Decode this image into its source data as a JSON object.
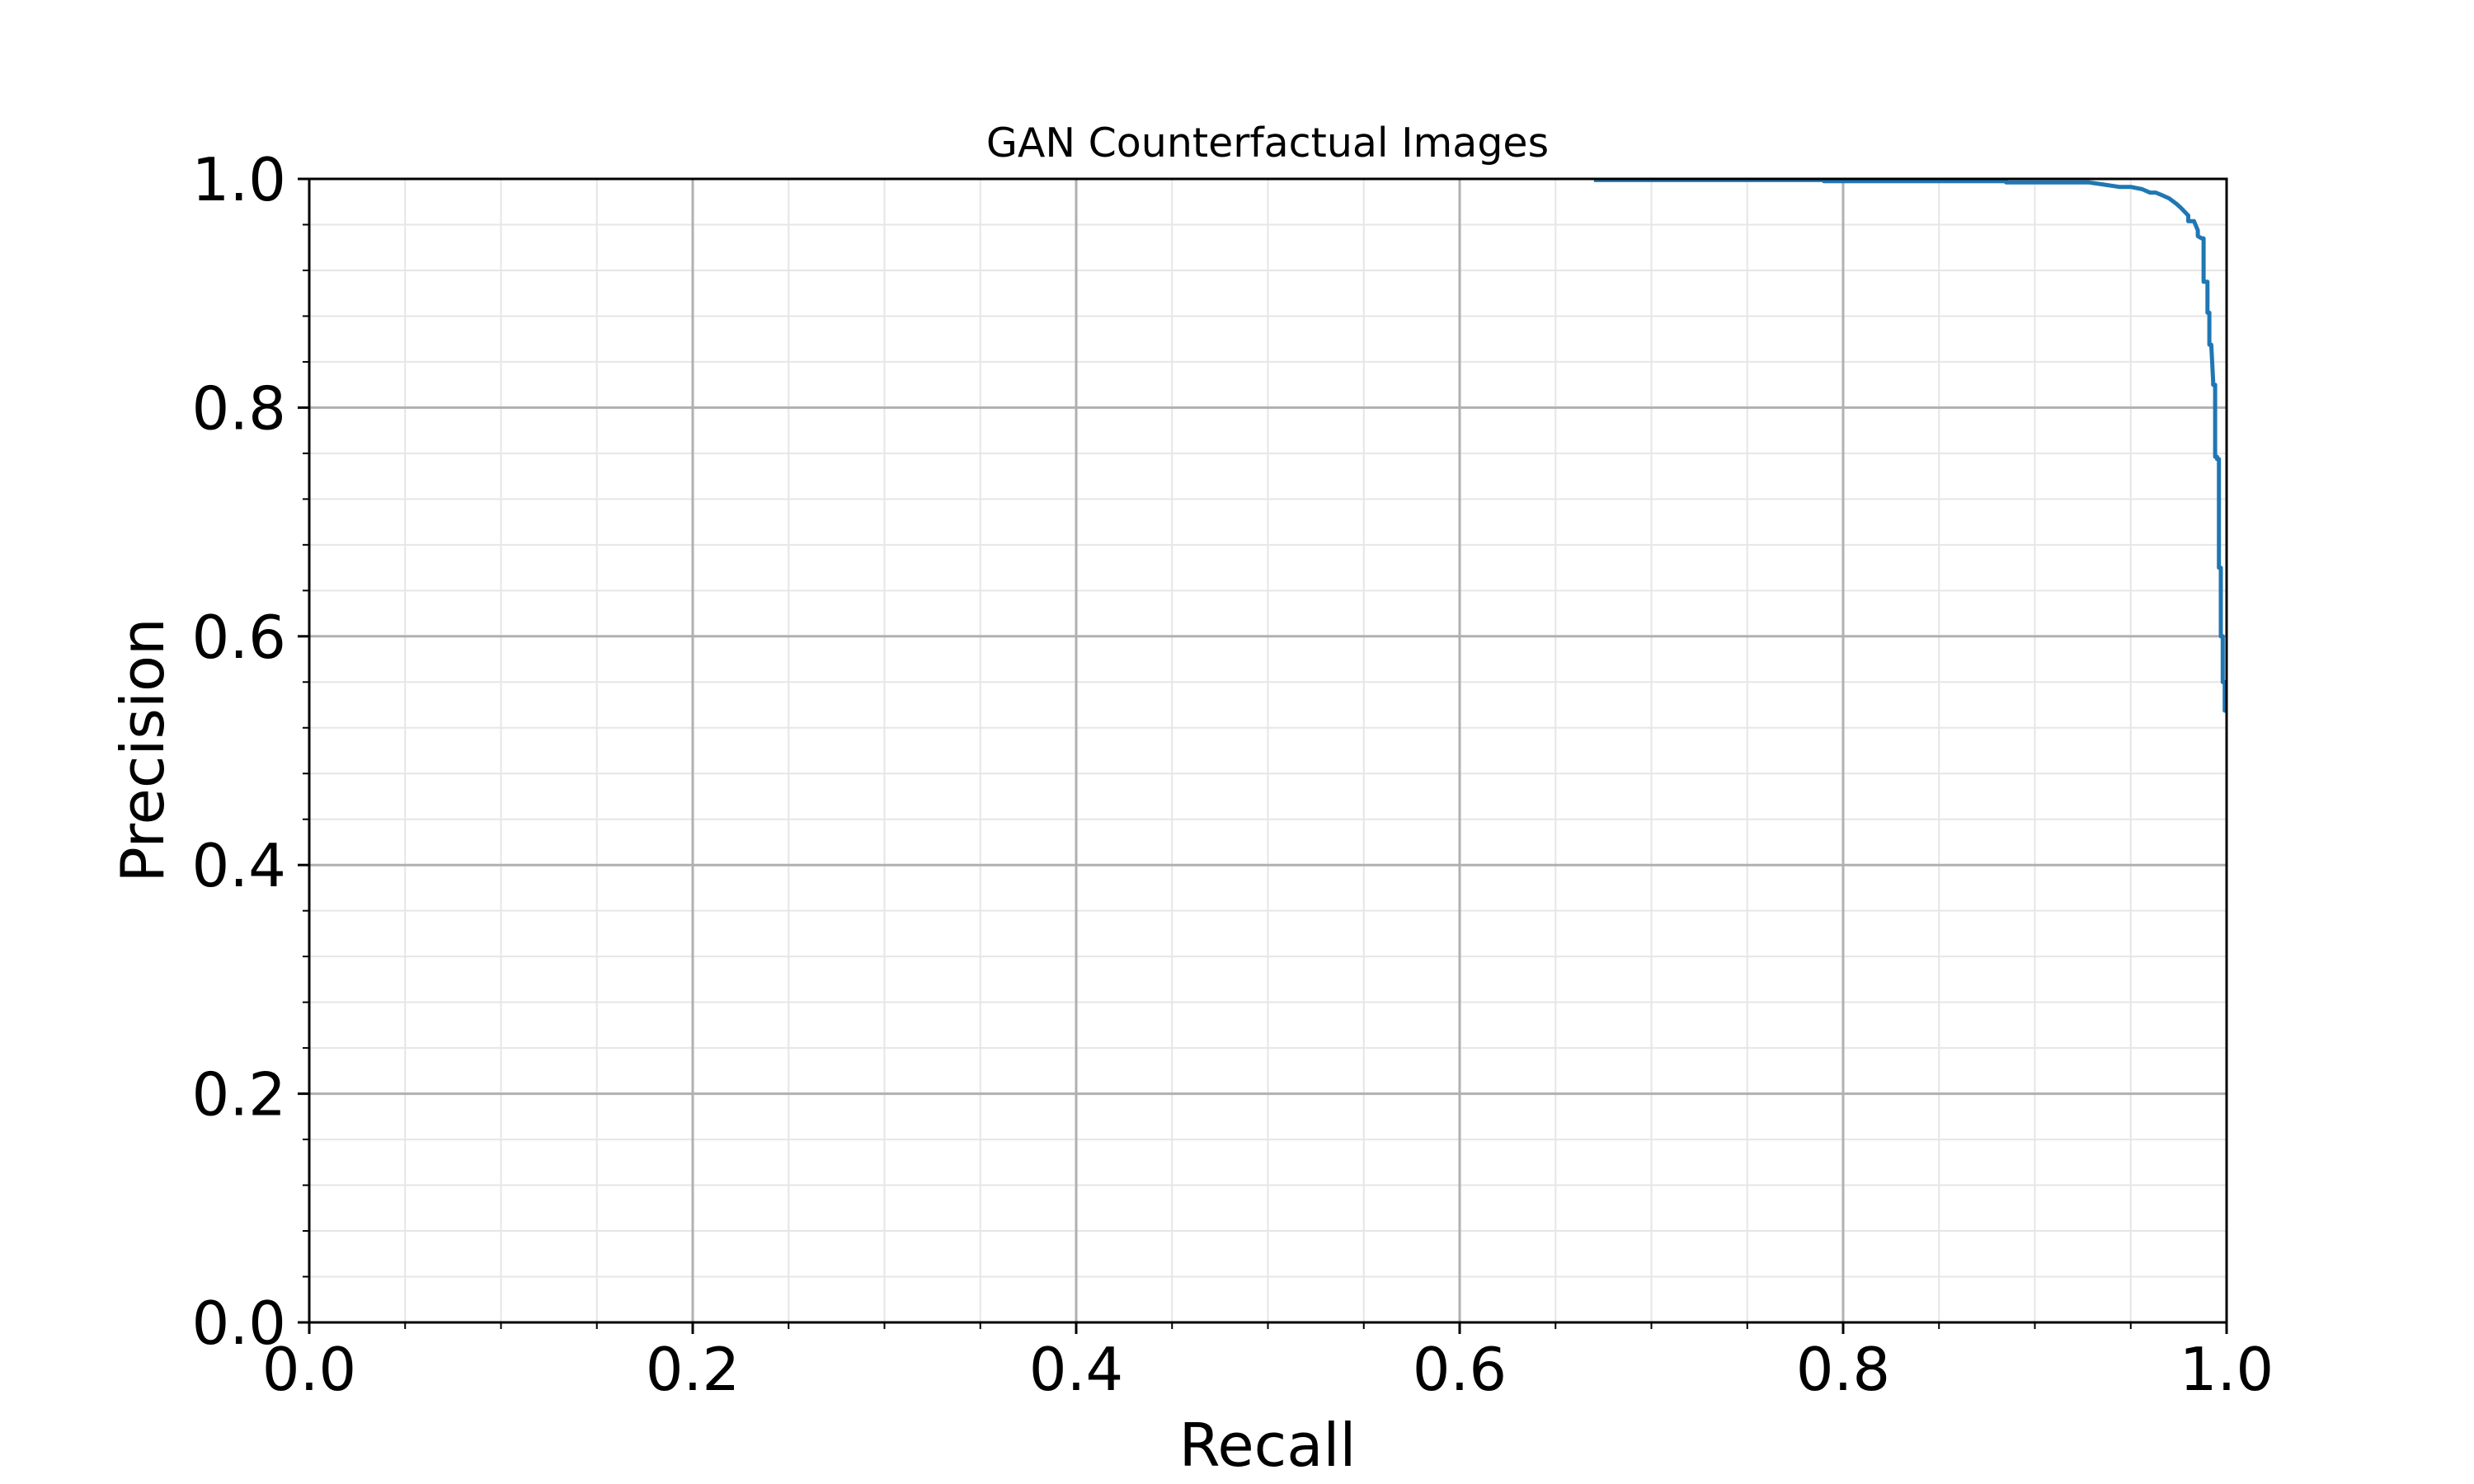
{
  "chart_data": {
    "type": "line",
    "title": "GAN Counterfactual Images",
    "xlabel": "Recall",
    "ylabel": "Precision",
    "xlim": [
      0.0,
      1.0
    ],
    "ylim": [
      0.0,
      1.0
    ],
    "xticks": [
      "0.0",
      "0.2",
      "0.4",
      "0.6",
      "0.8",
      "1.0"
    ],
    "yticks": [
      "0.0",
      "0.2",
      "0.4",
      "0.6",
      "0.8",
      "1.0"
    ],
    "grid": true,
    "minor_grid": true,
    "colors": {
      "series": "#1f77b4",
      "major_grid": "#b0b0b0",
      "minor_grid": "#e6e6e6"
    },
    "series": [
      {
        "x": [
          0.67,
          0.79,
          0.79,
          0.885,
          0.885,
          0.928,
          0.936,
          0.944,
          0.95,
          0.956,
          0.96,
          0.963,
          0.966,
          0.97,
          0.974,
          0.976,
          0.98,
          0.98,
          0.983,
          0.985,
          0.985,
          0.987,
          0.988,
          0.988,
          0.99,
          0.99,
          0.991,
          0.991,
          0.992,
          0.993,
          0.993,
          0.994,
          0.994,
          0.995,
          0.995,
          0.996,
          0.996,
          0.997,
          0.997,
          0.998,
          0.998,
          0.999,
          0.999,
          1.0
        ],
        "y": [
          0.999,
          0.999,
          0.998,
          0.998,
          0.997,
          0.997,
          0.995,
          0.993,
          0.993,
          0.991,
          0.988,
          0.988,
          0.986,
          0.983,
          0.978,
          0.975,
          0.968,
          0.963,
          0.963,
          0.955,
          0.95,
          0.948,
          0.948,
          0.91,
          0.91,
          0.883,
          0.883,
          0.855,
          0.855,
          0.823,
          0.82,
          0.82,
          0.757,
          0.757,
          0.755,
          0.755,
          0.66,
          0.66,
          0.6,
          0.6,
          0.56,
          0.56,
          0.535,
          0.535
        ]
      }
    ]
  }
}
